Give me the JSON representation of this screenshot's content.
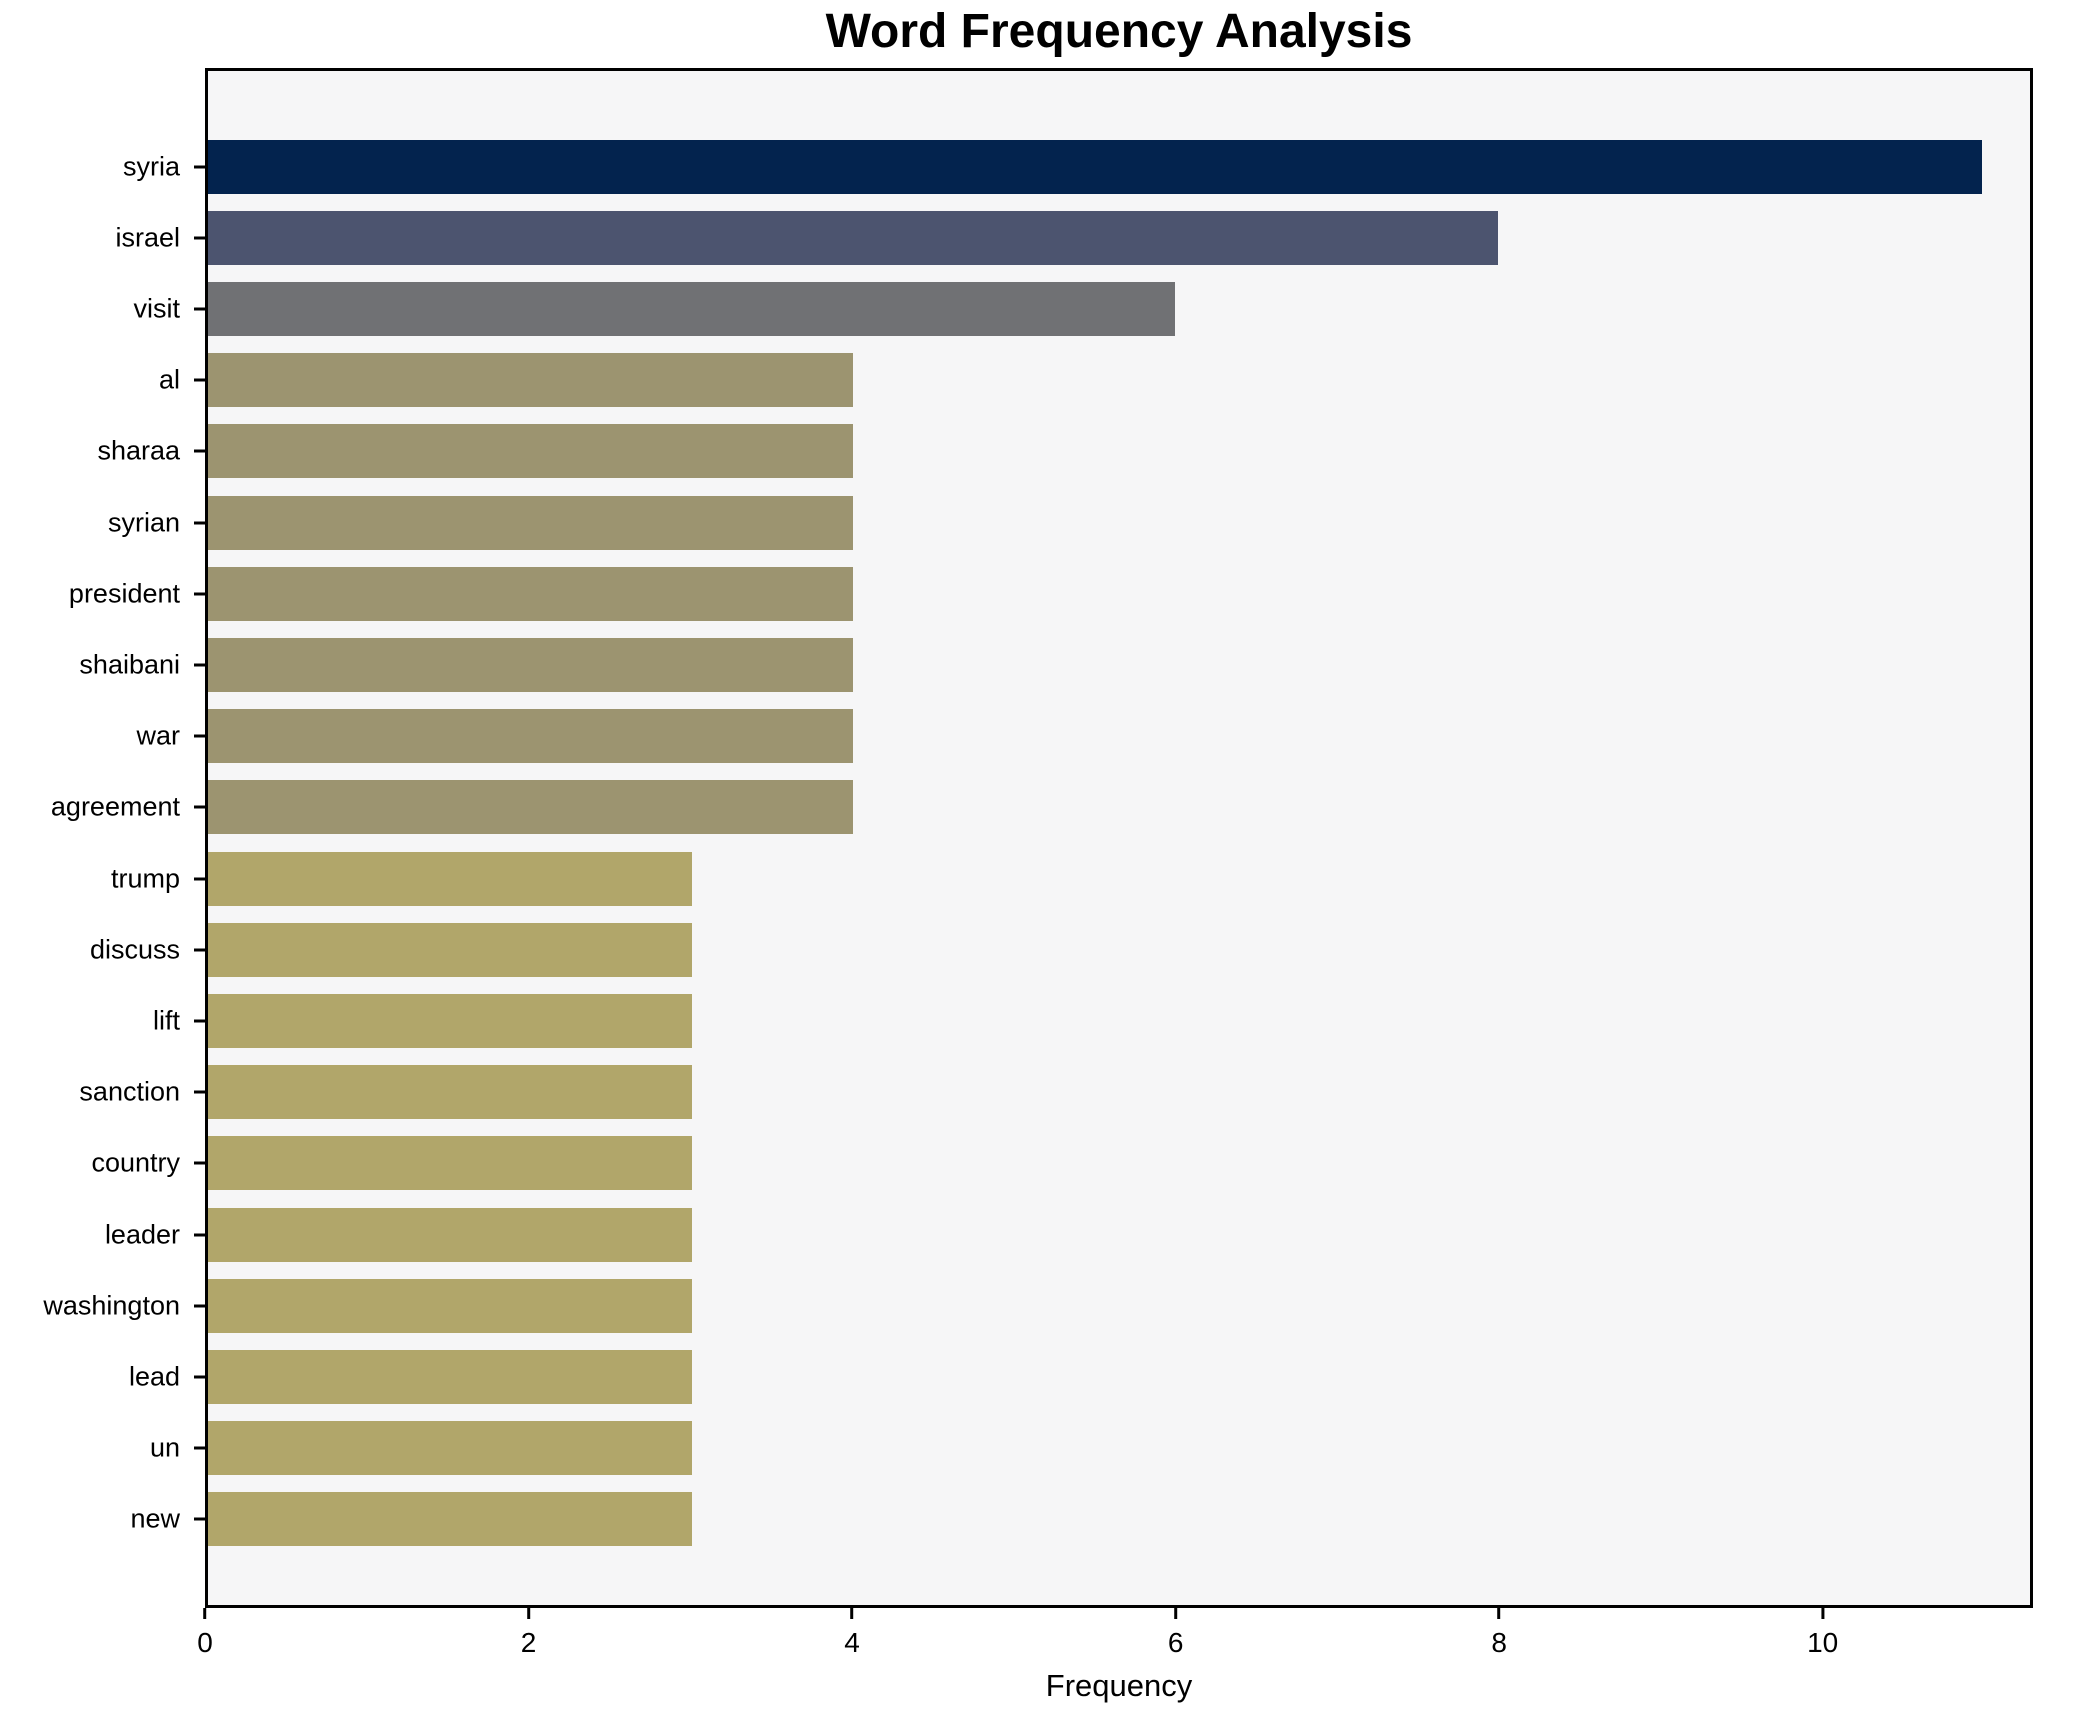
{
  "chart_data": {
    "type": "bar",
    "orientation": "horizontal",
    "title": "Word Frequency Analysis",
    "xlabel": "Frequency",
    "ylabel": "",
    "grid": false,
    "plot_background": "#f6f6f7",
    "figure_background": "#ffffff",
    "xlim": [
      0,
      11.3
    ],
    "xticks": [
      0,
      2,
      4,
      6,
      8,
      10
    ],
    "categories": [
      "syria",
      "israel",
      "visit",
      "al",
      "sharaa",
      "syrian",
      "president",
      "shaibani",
      "war",
      "agreement",
      "trump",
      "discuss",
      "lift",
      "sanction",
      "country",
      "leader",
      "washington",
      "lead",
      "un",
      "new"
    ],
    "values": [
      11,
      8,
      6,
      4,
      4,
      4,
      4,
      4,
      4,
      4,
      3,
      3,
      3,
      3,
      3,
      3,
      3,
      3,
      3,
      3
    ],
    "bar_colors": [
      "#03234e",
      "#4c546f",
      "#707174",
      "#9c9470",
      "#9c9470",
      "#9c9470",
      "#9c9470",
      "#9c9470",
      "#9c9470",
      "#9c9470",
      "#b1a66a",
      "#b1a66a",
      "#b1a66a",
      "#b1a66a",
      "#b1a66a",
      "#b1a66a",
      "#b1a66a",
      "#b1a66a",
      "#b1a66a",
      "#b1a66a"
    ]
  }
}
